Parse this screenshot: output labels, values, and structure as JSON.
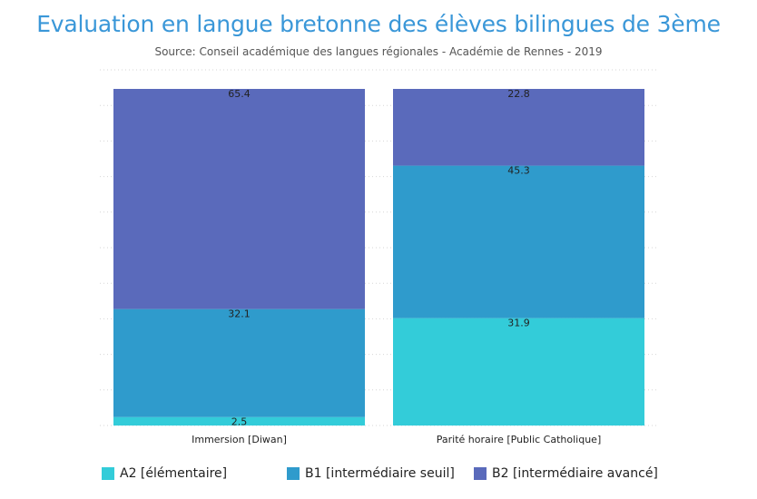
{
  "chart_data": {
    "type": "bar",
    "stacked": true,
    "title": "Evaluation en langue bretonne des élèves bilingues de 3ème",
    "subtitle": "Source: Conseil académique des langues régionales - Académie de Rennes  - 2019",
    "categories": [
      "Immersion [Diwan]",
      "Parité horaire [Public Catholique]"
    ],
    "series": [
      {
        "name": "A2 [élémentaire]",
        "values": [
          2.5,
          31.9
        ],
        "color": "#33ccd9"
      },
      {
        "name": "B1 [intermédiaire seuil]",
        "values": [
          32.1,
          45.3
        ],
        "color": "#2f9bcc"
      },
      {
        "name": "B2 [intermédiaire avancé]",
        "values": [
          65.4,
          22.8
        ],
        "color": "#5a6abb"
      }
    ],
    "ylim": [
      0,
      100
    ],
    "grid": true,
    "legend_position": "bottom"
  }
}
